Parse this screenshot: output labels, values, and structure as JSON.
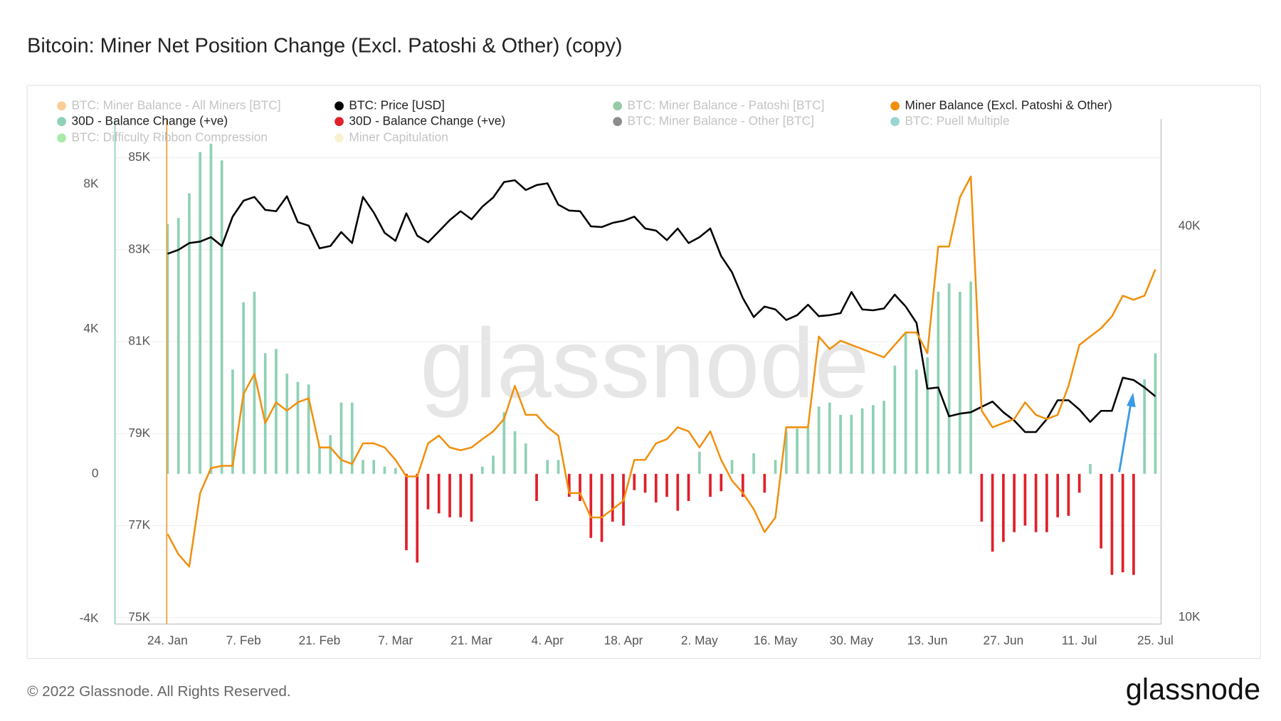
{
  "title": "Bitcoin: Miner Net Position Change (Excl. Patoshi & Other) (copy)",
  "footer": "© 2022 Glassnode. All Rights Reserved.",
  "logo": "glassnode",
  "watermark": "glassnode",
  "chart_data": {
    "type": "combo",
    "grid": true,
    "categories": [
      "24. Jan",
      null,
      null,
      null,
      null,
      null,
      null,
      "7. Feb",
      null,
      null,
      null,
      null,
      null,
      null,
      "21. Feb",
      null,
      null,
      null,
      null,
      null,
      null,
      "7. Mar",
      null,
      null,
      null,
      null,
      null,
      null,
      "21. Mar",
      null,
      null,
      null,
      null,
      null,
      null,
      "4. Apr",
      null,
      null,
      null,
      null,
      null,
      null,
      "18. Apr",
      null,
      null,
      null,
      null,
      null,
      null,
      "2. May",
      null,
      null,
      null,
      null,
      null,
      null,
      "16. May",
      null,
      null,
      null,
      null,
      null,
      null,
      "30. May",
      null,
      null,
      null,
      null,
      null,
      null,
      "13. Jun",
      null,
      null,
      null,
      null,
      null,
      null,
      "27. Jun",
      null,
      null,
      null,
      null,
      null,
      null,
      "11. Jul",
      null,
      null,
      null,
      null,
      null,
      null,
      "25. Jul"
    ],
    "ylim": [
      -4150,
      9800
    ],
    "yticks": [
      {
        "value": -4000,
        "label": "-4K"
      },
      0,
      {
        "value": 4000,
        "label": "4K"
      },
      {
        "value": 8000,
        "label": "8K"
      }
    ],
    "y2lim": [
      74860,
      85840
    ],
    "y2ticks": [
      {
        "value": 75000,
        "label": "75K"
      },
      {
        "value": 77000,
        "label": "77K"
      },
      {
        "value": 79000,
        "label": "79K"
      },
      {
        "value": 81000,
        "label": "81K"
      },
      {
        "value": 83000,
        "label": "83K"
      },
      {
        "value": 85000,
        "label": "85K"
      }
    ],
    "y3lim": [
      9770,
      58500
    ],
    "y3log": true,
    "y3ticks": [
      {
        "value": 10000,
        "label": "10K"
      },
      {
        "value": 40000,
        "label": "40K"
      }
    ],
    "series": [
      {
        "name": "BTC: Miner Balance - All Miners [BTC]",
        "color": "#f7931a",
        "visible": false
      },
      {
        "name": "BTC: Price [USD]",
        "color": "#000000",
        "visible": true,
        "type": "line",
        "axis": "y3",
        "values": [
          36300,
          36800,
          37700,
          37900,
          38500,
          37300,
          41400,
          43800,
          44400,
          42400,
          42200,
          44500,
          40600,
          40100,
          37000,
          37300,
          39200,
          37700,
          44400,
          42000,
          39100,
          38000,
          41900,
          38700,
          37800,
          39300,
          40900,
          42200,
          41000,
          42900,
          44300,
          46800,
          47100,
          45500,
          46300,
          46600,
          43200,
          42300,
          42200,
          40000,
          39900,
          40500,
          40800,
          41400,
          39700,
          39400,
          38100,
          39700,
          37700,
          38500,
          39700,
          36000,
          34000,
          31000,
          29000,
          30100,
          29800,
          28700,
          29200,
          30300,
          29100,
          29200,
          29400,
          31700,
          29800,
          29700,
          29900,
          31400,
          30100,
          28400,
          22500,
          22600,
          20400,
          20600,
          20700,
          21100,
          21500,
          20700,
          20100,
          19300,
          19300,
          20200,
          21600,
          21600,
          20900,
          20000,
          20800,
          20800,
          23400,
          23200,
          22600,
          21900
        ]
      },
      {
        "name": "BTC: Miner Balance - Patoshi [BTC]",
        "color": "#1a8a3a",
        "visible": false
      },
      {
        "name": "Miner Balance (Excl. Patoshi & Other)",
        "color": "#f0900e",
        "visible": true,
        "type": "line",
        "axis": "y2",
        "values": [
          76820,
          76380,
          76110,
          77710,
          78250,
          78300,
          78300,
          79860,
          80300,
          79230,
          79680,
          79500,
          79680,
          79770,
          78700,
          78700,
          78430,
          78340,
          78790,
          78790,
          78700,
          78430,
          78070,
          78070,
          78790,
          78960,
          78700,
          78640,
          78700,
          78880,
          79050,
          79320,
          80040,
          79410,
          79410,
          79140,
          78960,
          77710,
          77710,
          77180,
          77180,
          77360,
          77540,
          78430,
          78430,
          78790,
          78880,
          79140,
          79050,
          78700,
          79050,
          78430,
          77980,
          77710,
          77360,
          76860,
          77180,
          79140,
          79140,
          79140,
          81110,
          80840,
          81020,
          80930,
          80840,
          80750,
          80660,
          80930,
          81200,
          81200,
          80750,
          83070,
          83070,
          84140,
          84590,
          79500,
          79140,
          79230,
          79320,
          79680,
          79410,
          79320,
          79410,
          80040,
          80930,
          81110,
          81290,
          81550,
          82000,
          81910,
          82000,
          82570
        ]
      },
      {
        "name": "30D - Balance Change (+ve)",
        "color": "#8fd1b5",
        "visible": true,
        "type": "bar",
        "axis": "y",
        "values": [
          6900,
          7070,
          7750,
          8890,
          9120,
          8660,
          2880,
          4740,
          5030,
          3330,
          3450,
          2770,
          2540,
          2470,
          730,
          1070,
          1970,
          1970,
          385,
          385,
          200,
          160,
          null,
          null,
          null,
          null,
          null,
          null,
          null,
          200,
          500,
          1700,
          1180,
          840,
          null,
          385,
          385,
          null,
          null,
          null,
          null,
          null,
          null,
          null,
          null,
          null,
          null,
          null,
          null,
          610,
          null,
          null,
          385,
          null,
          570,
          null,
          385,
          1180,
          1250,
          1290,
          1860,
          1970,
          1630,
          1630,
          1810,
          1900,
          2020,
          2990,
          3900,
          2880,
          3220,
          5030,
          5260,
          5030,
          5310,
          null,
          null,
          null,
          null,
          null,
          null,
          null,
          null,
          null,
          null,
          270,
          null,
          null,
          null,
          null,
          2610,
          3330
        ]
      },
      {
        "name": "30D - Balance Change (+ve)",
        "color": "#e0202a",
        "visible": true,
        "type": "bar",
        "axis": "y",
        "values": [
          null,
          null,
          null,
          null,
          null,
          null,
          null,
          null,
          null,
          null,
          null,
          null,
          null,
          null,
          null,
          null,
          null,
          null,
          null,
          null,
          null,
          null,
          -2110,
          -2450,
          -980,
          -1090,
          -1200,
          -1200,
          -1320,
          null,
          null,
          null,
          null,
          null,
          -750,
          null,
          null,
          -635,
          -750,
          -1770,
          -1880,
          -1320,
          -1430,
          -450,
          -520,
          -790,
          -635,
          -1020,
          -750,
          null,
          -635,
          -480,
          null,
          -635,
          null,
          -520,
          null,
          null,
          null,
          null,
          null,
          null,
          null,
          null,
          null,
          null,
          null,
          null,
          null,
          null,
          null,
          null,
          null,
          null,
          null,
          -1320,
          -2150,
          -1880,
          -1610,
          -1430,
          -1610,
          -1610,
          -1200,
          -1160,
          -520,
          null,
          -2060,
          -2790,
          -2720,
          -2790,
          null,
          null
        ]
      },
      {
        "name": "BTC: Miner Balance - Other [BTC]",
        "color": "#000000",
        "visible": false
      },
      {
        "name": "BTC: Puell Multiple",
        "color": "#1fa59a",
        "visible": false
      },
      {
        "name": "BTC: Difficulty Ribbon Compression",
        "color": "#3fd13f",
        "visible": false
      },
      {
        "name": "Miner Capitulation",
        "color": "#f5dfa0",
        "visible": false
      }
    ]
  }
}
